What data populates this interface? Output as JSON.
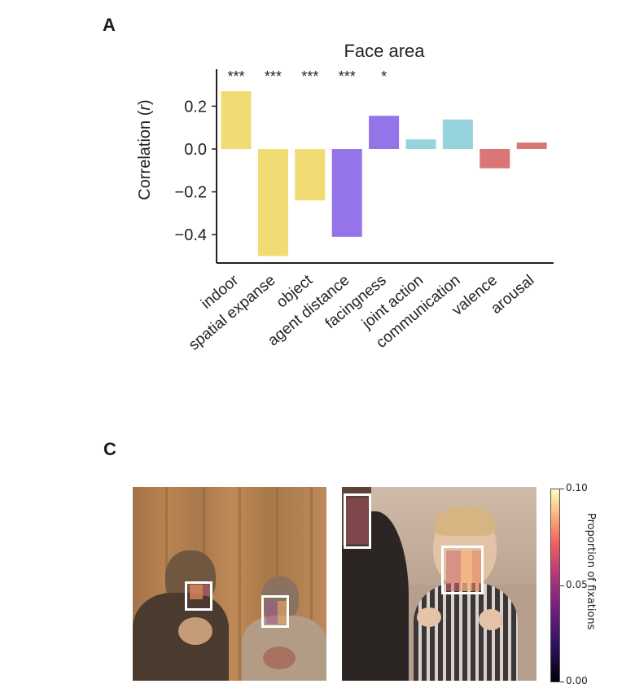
{
  "panels": {
    "a": "A",
    "c": "C"
  },
  "chart_data": {
    "type": "bar",
    "title": "Face area",
    "ylabel": "Correlation (r)",
    "xlabel": "",
    "ylim": [
      -0.52,
      0.38
    ],
    "yticks": [
      "0.2",
      "0.0",
      "−0.2",
      "−0.4"
    ],
    "yticks_values": [
      0.2,
      0.0,
      -0.2,
      -0.4
    ],
    "categories": [
      "indoor",
      "spatial expanse",
      "object",
      "agent distance",
      "facingness",
      "joint action",
      "communication",
      "valence",
      "arousal"
    ],
    "values": [
      0.27,
      -0.5,
      -0.24,
      -0.41,
      0.155,
      0.045,
      0.138,
      -0.09,
      0.03
    ],
    "significance": [
      "***",
      "***",
      "***",
      "***",
      "*",
      "",
      "",
      "",
      ""
    ],
    "colors": [
      "#f0dc73",
      "#f0dc73",
      "#f0dc73",
      "#9573e9",
      "#9573e9",
      "#96d3dd",
      "#96d3dd",
      "#da7676",
      "#da7676"
    ],
    "grid": false
  },
  "heatmap": {
    "colorbar_ticks": [
      "0.10",
      "0.05",
      "0.00"
    ],
    "colorbar_label": "Proportion of fixations"
  }
}
